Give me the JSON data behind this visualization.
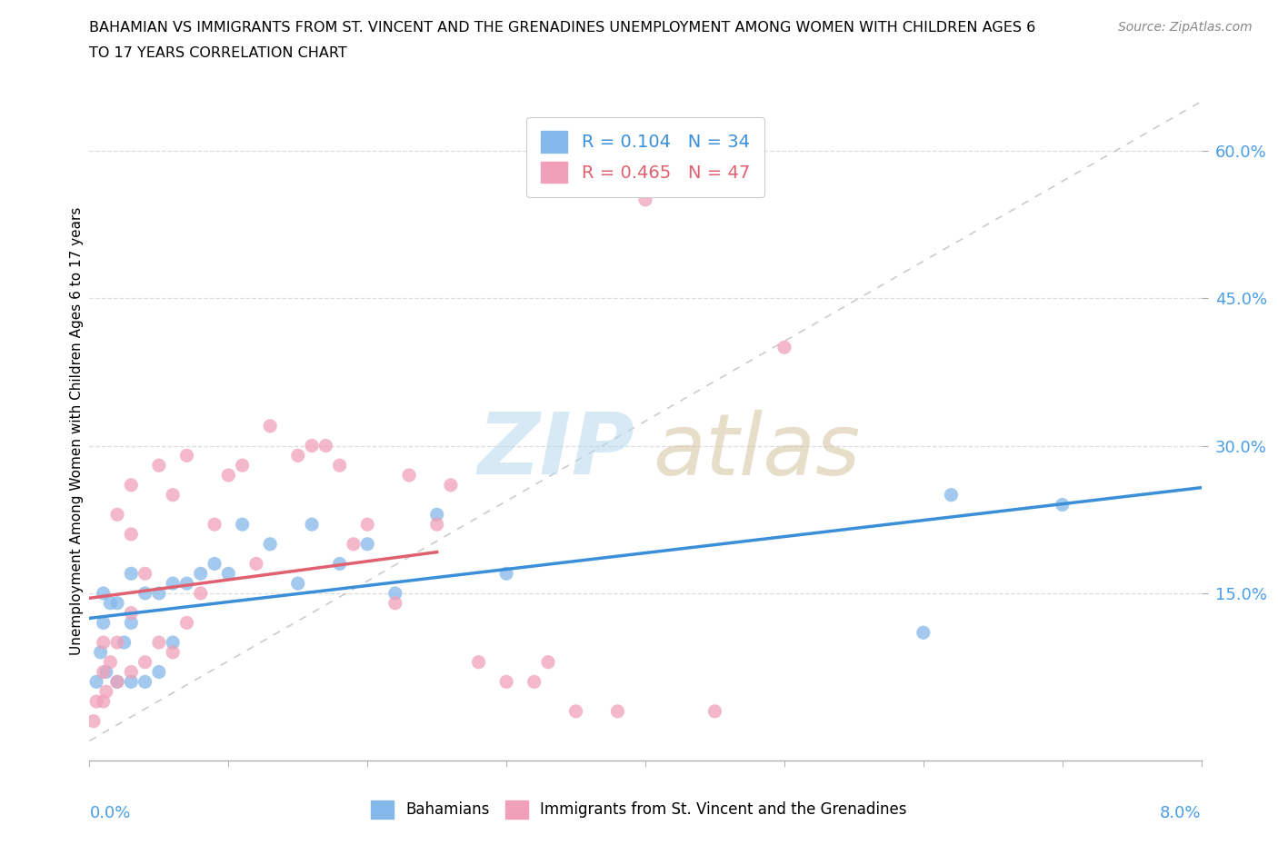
{
  "title_line1": "BAHAMIAN VS IMMIGRANTS FROM ST. VINCENT AND THE GRENADINES UNEMPLOYMENT AMONG WOMEN WITH CHILDREN AGES 6",
  "title_line2": "TO 17 YEARS CORRELATION CHART",
  "source": "Source: ZipAtlas.com",
  "ylabel": "Unemployment Among Women with Children Ages 6 to 17 years",
  "xlim": [
    0.0,
    0.08
  ],
  "ylim": [
    -0.02,
    0.65
  ],
  "ytick_vals": [
    0.15,
    0.3,
    0.45,
    0.6
  ],
  "ytick_labels": [
    "15.0%",
    "30.0%",
    "45.0%",
    "60.0%"
  ],
  "legend_labels_bottom": [
    "Bahamians",
    "Immigrants from St. Vincent and the Grenadines"
  ],
  "blue_scatter_color": "#85b8ea",
  "pink_scatter_color": "#f0a0b8",
  "blue_line_color": "#3a8fd8",
  "pink_line_color": "#e06070",
  "diag_color": "#cccccc",
  "grid_color": "#dddddd",
  "blue_x": [
    0.0005,
    0.0008,
    0.001,
    0.001,
    0.0012,
    0.0015,
    0.002,
    0.002,
    0.0025,
    0.003,
    0.003,
    0.003,
    0.004,
    0.004,
    0.005,
    0.005,
    0.006,
    0.006,
    0.007,
    0.008,
    0.009,
    0.01,
    0.011,
    0.013,
    0.015,
    0.016,
    0.018,
    0.02,
    0.022,
    0.025,
    0.03,
    0.06,
    0.062,
    0.07
  ],
  "blue_y": [
    0.06,
    0.09,
    0.12,
    0.15,
    0.07,
    0.14,
    0.06,
    0.14,
    0.1,
    0.06,
    0.12,
    0.17,
    0.06,
    0.15,
    0.07,
    0.15,
    0.1,
    0.16,
    0.16,
    0.17,
    0.18,
    0.17,
    0.22,
    0.2,
    0.16,
    0.22,
    0.18,
    0.2,
    0.15,
    0.23,
    0.17,
    0.11,
    0.25,
    0.24
  ],
  "pink_x": [
    0.0003,
    0.0005,
    0.001,
    0.001,
    0.001,
    0.0012,
    0.0015,
    0.002,
    0.002,
    0.002,
    0.003,
    0.003,
    0.003,
    0.004,
    0.004,
    0.005,
    0.005,
    0.006,
    0.006,
    0.007,
    0.007,
    0.008,
    0.009,
    0.01,
    0.011,
    0.012,
    0.013,
    0.015,
    0.016,
    0.017,
    0.018,
    0.019,
    0.02,
    0.022,
    0.023,
    0.025,
    0.026,
    0.028,
    0.03,
    0.032,
    0.033,
    0.035,
    0.038,
    0.04,
    0.045,
    0.05,
    0.003
  ],
  "pink_y": [
    0.02,
    0.04,
    0.04,
    0.07,
    0.1,
    0.05,
    0.08,
    0.06,
    0.1,
    0.23,
    0.07,
    0.13,
    0.26,
    0.08,
    0.17,
    0.1,
    0.28,
    0.09,
    0.25,
    0.12,
    0.29,
    0.15,
    0.22,
    0.27,
    0.28,
    0.18,
    0.32,
    0.29,
    0.3,
    0.3,
    0.28,
    0.2,
    0.22,
    0.14,
    0.27,
    0.22,
    0.26,
    0.08,
    0.06,
    0.06,
    0.08,
    0.03,
    0.03,
    0.55,
    0.03,
    0.4,
    0.21
  ],
  "marker_size": 120
}
